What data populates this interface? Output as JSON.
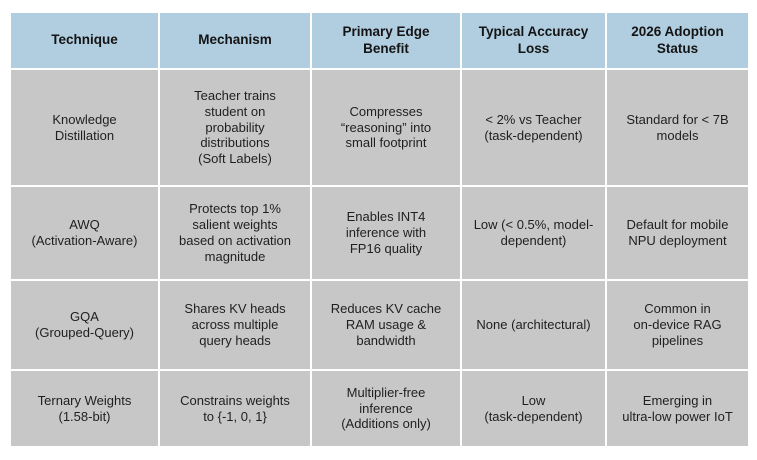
{
  "colors": {
    "header_bg": "#B1CDE0",
    "cell_bg": "#C7C7C7",
    "gap": "#FFFFFF",
    "text": "#1F1F1F"
  },
  "table": {
    "header": [
      "Technique",
      "Mechanism",
      "Primary Edge\nBenefit",
      "Typical Accuracy\nLoss",
      "2026 Adoption\nStatus"
    ],
    "rows": [
      [
        "Knowledge\nDistillation",
        "Teacher trains\nstudent on\nprobability\ndistributions\n(Soft Labels)",
        "Compresses\n“reasoning” into\nsmall footprint",
        "< 2% vs Teacher\n(task-dependent)",
        "Standard for < 7B\nmodels"
      ],
      [
        "AWQ\n(Activation-Aware)",
        "Protects top 1%\nsalient weights\nbased on activation\nmagnitude",
        "Enables INT4\ninference with\nFP16 quality",
        "Low (< 0.5%, model-\ndependent)",
        "Default for mobile\nNPU deployment"
      ],
      [
        "GQA\n(Grouped-Query)",
        "Shares KV heads\nacross multiple\nquery heads",
        "Reduces KV cache\nRAM usage &\nbandwidth",
        "None (architectural)",
        "Common in\non-device RAG\npipelines"
      ],
      [
        "Ternary Weights\n(1.58-bit)",
        "Constrains weights\nto {-1, 0, 1}",
        "Multiplier-free\ninference\n(Additions only)",
        "Low\n(task-dependent)",
        "Emerging in\nultra-low power IoT"
      ]
    ]
  }
}
